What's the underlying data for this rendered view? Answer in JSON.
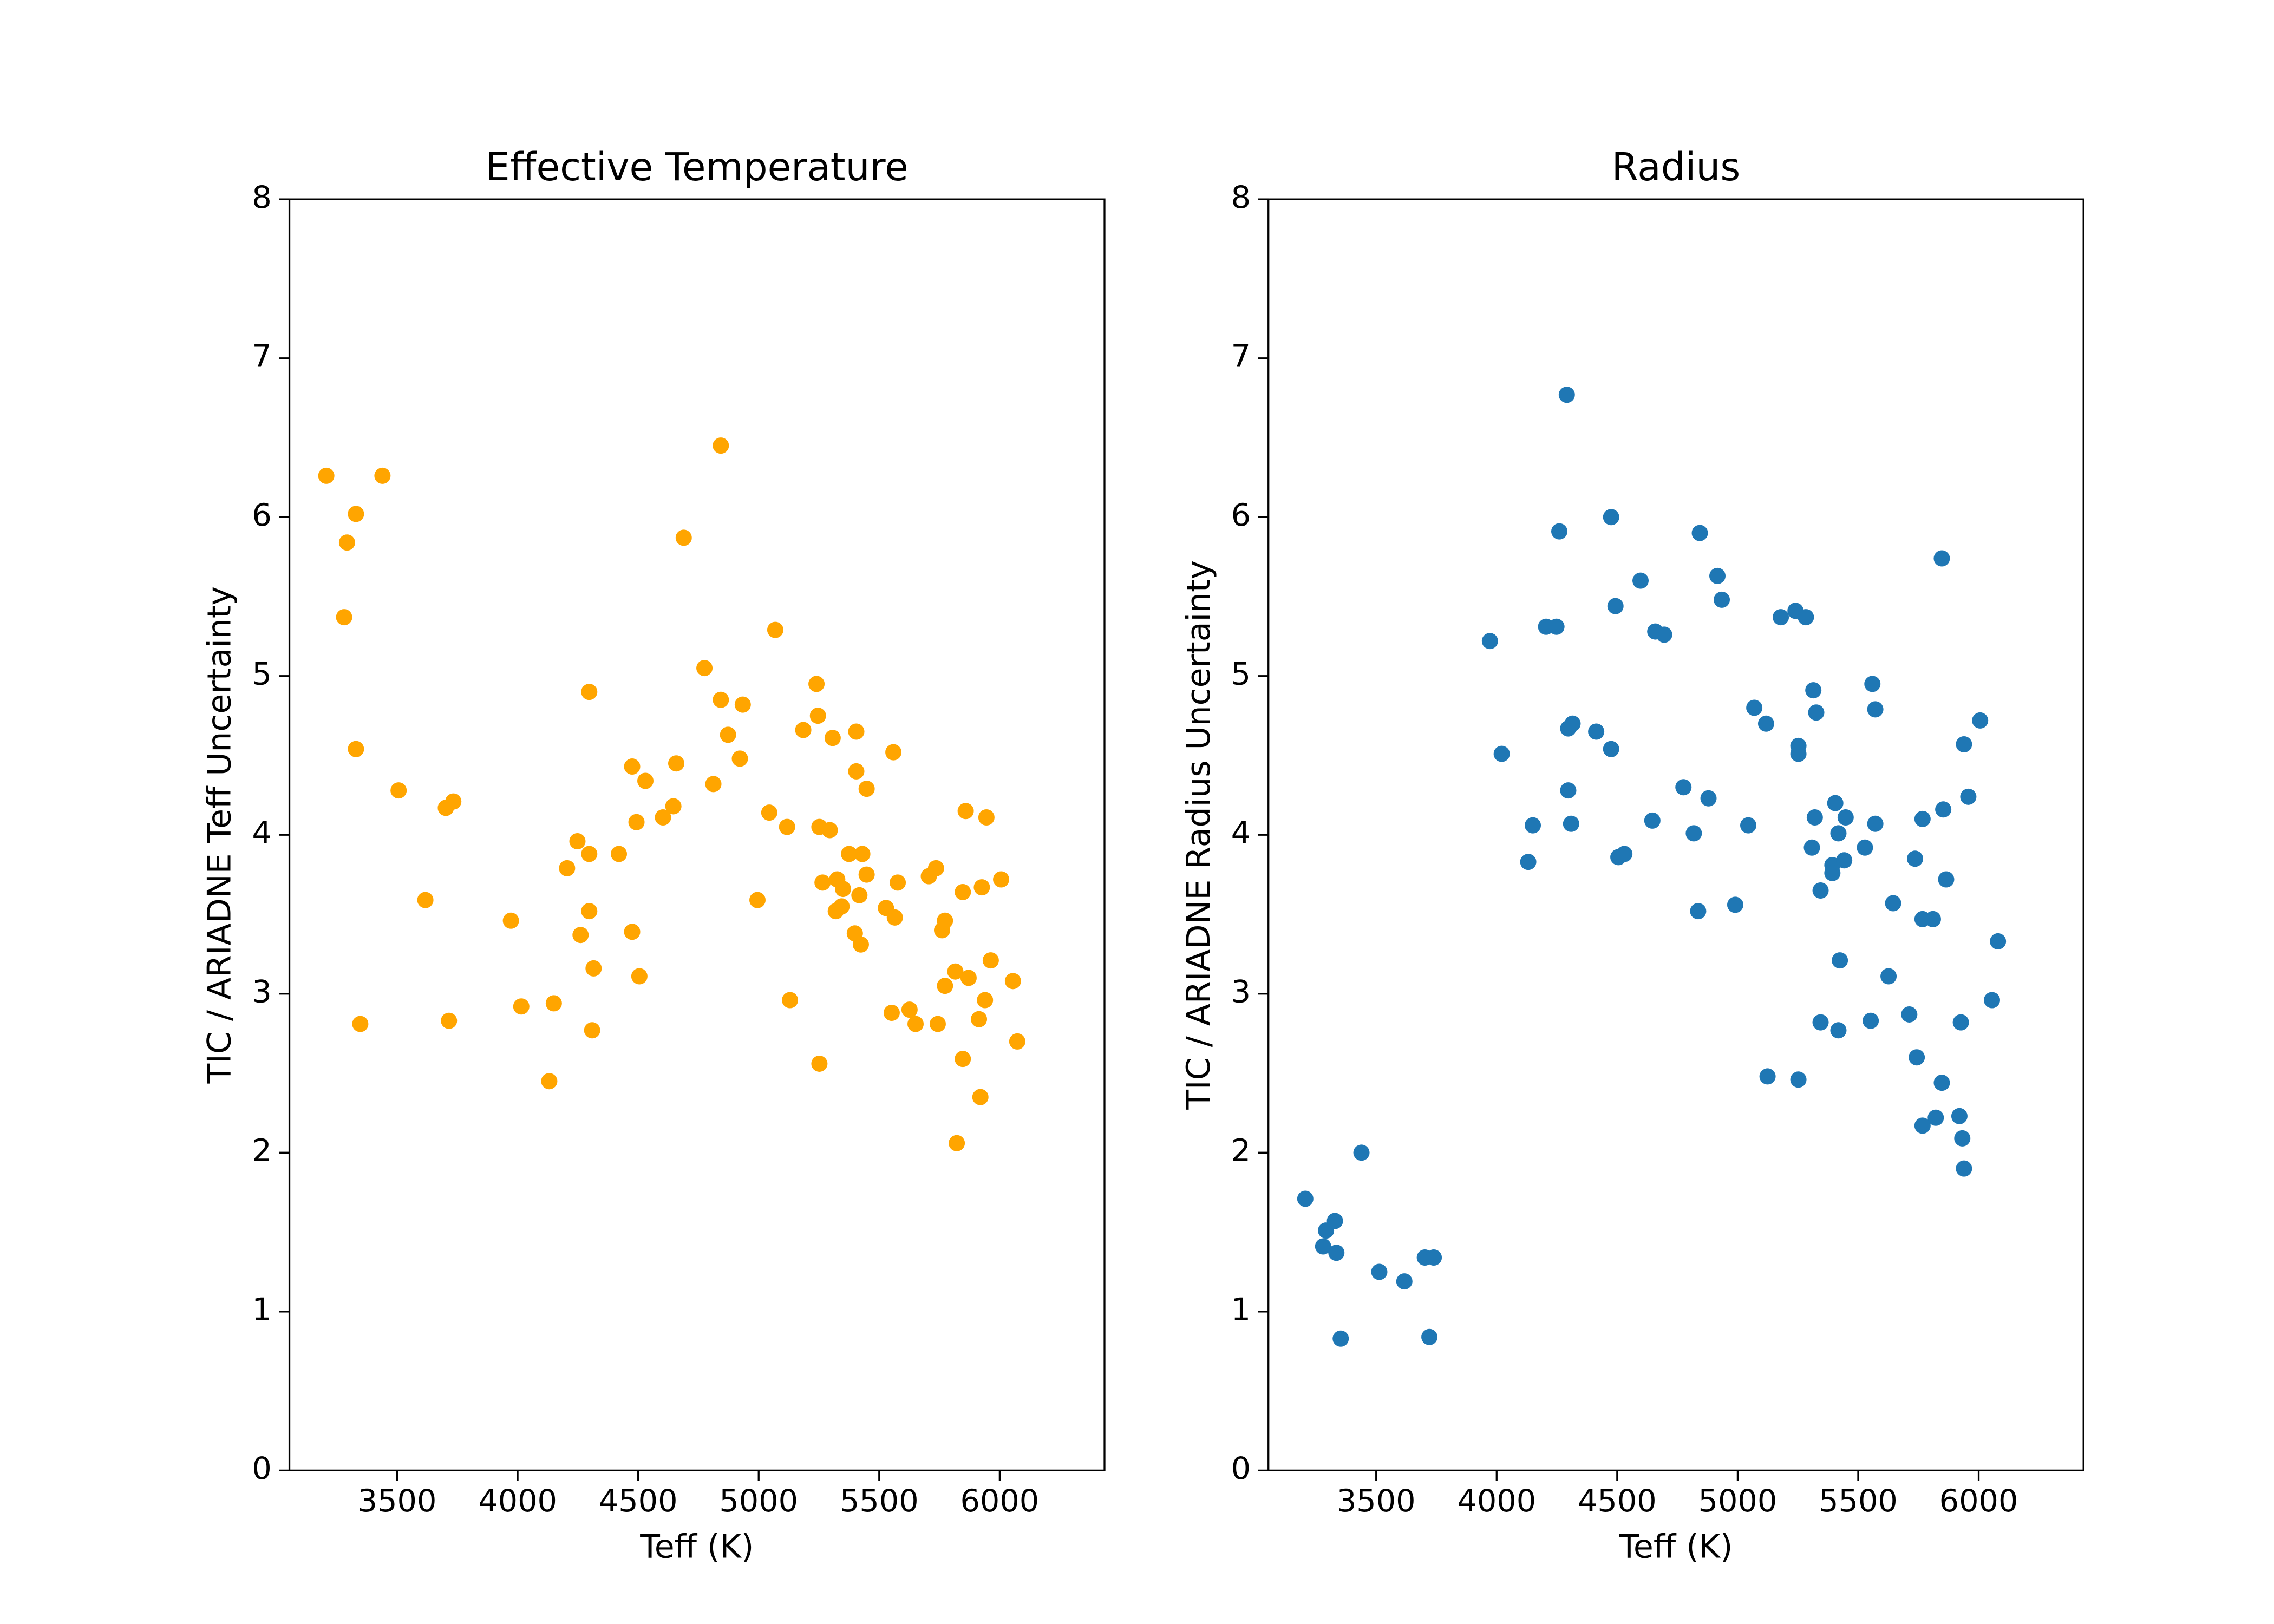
{
  "chart_data": [
    {
      "type": "scatter",
      "title": "Effective Temperature",
      "xlabel": "Teff (K)",
      "ylabel": "TIC / ARIADNE Teff Uncertainty",
      "color": "#ffa500",
      "xlim": [
        3053,
        6435
      ],
      "ylim": [
        0,
        8
      ],
      "xticks": [
        3500,
        4000,
        4500,
        5000,
        5500,
        6000
      ],
      "yticks": [
        0,
        1,
        2,
        3,
        4,
        5,
        6,
        7,
        8
      ],
      "x": [
        3206,
        3439,
        3329,
        3292,
        3280,
        3329,
        3347,
        3506,
        3617,
        3702,
        3733,
        3715,
        3972,
        4015,
        4150,
        4131,
        4205,
        4248,
        4261,
        4297,
        4297,
        4297,
        4315,
        4309,
        4420,
        4475,
        4475,
        4493,
        4530,
        4505,
        4603,
        4646,
        4658,
        4689,
        4775,
        4812,
        4843,
        4843,
        4873,
        4922,
        4934,
        4995,
        5044,
        5069,
        5118,
        5130,
        5185,
        5240,
        5246,
        5252,
        5295,
        5252,
        5265,
        5307,
        5326,
        5320,
        5350,
        5344,
        5375,
        5405,
        5405,
        5399,
        5418,
        5424,
        5430,
        5448,
        5448,
        5528,
        5559,
        5552,
        5565,
        5577,
        5626,
        5651,
        5706,
        5736,
        5743,
        5761,
        5773,
        5773,
        5822,
        5816,
        5847,
        5859,
        5847,
        5871,
        5914,
        5926,
        5920,
        5945,
        5939,
        5963,
        6006,
        6055,
        6073
      ],
      "y": [
        6.26,
        6.26,
        6.02,
        5.84,
        5.37,
        4.54,
        2.81,
        4.28,
        3.59,
        4.17,
        4.21,
        2.83,
        3.46,
        2.92,
        2.94,
        2.45,
        3.79,
        3.96,
        3.37,
        3.88,
        4.9,
        3.52,
        3.16,
        2.77,
        3.88,
        4.43,
        3.39,
        4.08,
        4.34,
        3.11,
        4.11,
        4.18,
        4.45,
        5.87,
        5.05,
        4.32,
        6.45,
        4.85,
        4.63,
        4.48,
        4.82,
        3.59,
        4.14,
        5.29,
        4.05,
        2.96,
        4.66,
        4.95,
        4.75,
        4.05,
        4.03,
        2.56,
        3.7,
        4.61,
        3.72,
        3.52,
        3.66,
        3.55,
        3.88,
        4.65,
        4.4,
        3.38,
        3.62,
        3.31,
        3.88,
        4.29,
        3.75,
        3.54,
        4.52,
        2.88,
        3.48,
        3.7,
        2.9,
        2.81,
        3.74,
        3.79,
        2.81,
        3.4,
        3.46,
        3.05,
        2.06,
        3.14,
        3.64,
        4.15,
        2.59,
        3.1,
        2.84,
        3.67,
        2.35,
        4.11,
        2.96,
        3.21,
        3.72,
        3.08,
        2.7
      ]
    },
    {
      "type": "scatter",
      "title": "Radius",
      "xlabel": "Teff (K)",
      "ylabel": "TIC / ARIADNE Radius Uncertainty",
      "color": "#1f77b4",
      "xlim": [
        3053,
        6435
      ],
      "ylim": [
        0,
        8
      ],
      "xticks": [
        3500,
        4000,
        4500,
        5000,
        5500,
        6000
      ],
      "yticks": [
        0,
        1,
        2,
        3,
        4,
        5,
        6,
        7,
        8
      ],
      "x": [
        3206,
        3280,
        3292,
        3329,
        3335,
        3353,
        3439,
        3513,
        3617,
        3702,
        3739,
        3721,
        3972,
        4021,
        4131,
        4150,
        4205,
        4248,
        4260,
        4291,
        4297,
        4315,
        4297,
        4309,
        4413,
        4475,
        4475,
        4493,
        4505,
        4530,
        4597,
        4646,
        4658,
        4695,
        4775,
        4818,
        4843,
        4836,
        4879,
        4916,
        4934,
        4990,
        5044,
        5069,
        5118,
        5124,
        5179,
        5240,
        5252,
        5252,
        5252,
        5283,
        5314,
        5326,
        5320,
        5308,
        5344,
        5344,
        5393,
        5405,
        5418,
        5424,
        5442,
        5448,
        5418,
        5393,
        5528,
        5552,
        5559,
        5571,
        5571,
        5626,
        5645,
        5712,
        5736,
        5743,
        5767,
        5767,
        5767,
        5810,
        5822,
        5847,
        5847,
        5853,
        5865,
        5920,
        5926,
        5932,
        5939,
        5939,
        5957,
        6006,
        6055,
        6080
      ],
      "y": [
        1.71,
        1.41,
        1.51,
        1.57,
        1.37,
        0.83,
        2.0,
        1.25,
        1.19,
        1.34,
        1.34,
        0.84,
        5.22,
        4.51,
        3.83,
        4.06,
        5.31,
        5.31,
        5.91,
        6.77,
        4.67,
        4.7,
        4.28,
        4.07,
        4.65,
        6.0,
        4.54,
        5.44,
        3.86,
        3.88,
        5.6,
        4.09,
        5.28,
        5.26,
        4.3,
        4.01,
        5.9,
        3.52,
        4.23,
        5.63,
        5.48,
        3.56,
        4.06,
        4.8,
        4.7,
        2.48,
        5.37,
        5.41,
        4.56,
        4.51,
        2.46,
        5.37,
        4.91,
        4.77,
        4.11,
        3.92,
        3.65,
        2.82,
        3.81,
        4.2,
        4.01,
        3.21,
        3.84,
        4.11,
        2.77,
        3.76,
        3.92,
        2.83,
        4.95,
        4.07,
        4.79,
        3.11,
        3.57,
        2.87,
        3.85,
        2.6,
        4.1,
        3.47,
        2.17,
        3.47,
        2.22,
        5.74,
        2.44,
        4.16,
        3.72,
        2.23,
        2.82,
        2.09,
        4.57,
        1.9,
        4.24,
        4.72,
        2.96,
        3.33
      ]
    }
  ]
}
